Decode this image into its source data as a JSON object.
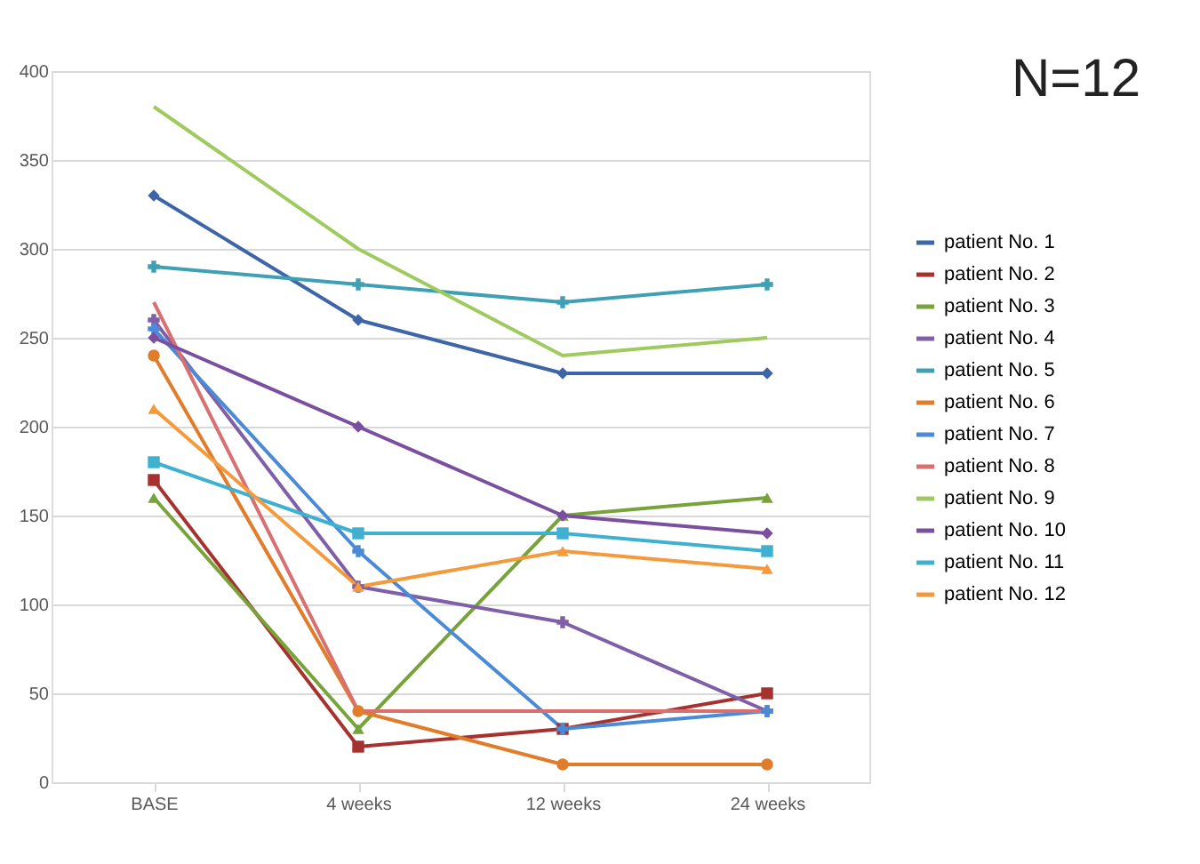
{
  "chart_data": {
    "type": "line",
    "categories": [
      "BASE",
      "4 weeks",
      "12 weeks",
      "24 weeks"
    ],
    "series": [
      {
        "name": "patient No. 1",
        "color": "#3d65a8",
        "marker": "diamond",
        "values": [
          330,
          260,
          230,
          230
        ]
      },
      {
        "name": "patient No. 2",
        "color": "#a5322f",
        "marker": "square",
        "values": [
          170,
          20,
          30,
          50
        ]
      },
      {
        "name": "patient No. 3",
        "color": "#77a33a",
        "marker": "triangle",
        "values": [
          160,
          30,
          150,
          160
        ]
      },
      {
        "name": "patient No. 4",
        "color": "#7f5fa8",
        "marker": "cross",
        "values": [
          260,
          110,
          90,
          40
        ]
      },
      {
        "name": "patient No. 5",
        "color": "#3fa0b5",
        "marker": "cross",
        "values": [
          290,
          280,
          270,
          280
        ]
      },
      {
        "name": "patient No. 6",
        "color": "#e07c2a",
        "marker": "circle",
        "values": [
          240,
          40,
          10,
          10
        ]
      },
      {
        "name": "patient No. 7",
        "color": "#4a8ad6",
        "marker": "cross",
        "values": [
          255,
          130,
          30,
          40
        ]
      },
      {
        "name": "patient No. 8",
        "color": "#d9706f",
        "marker": "none",
        "values": [
          270,
          40,
          40,
          40
        ]
      },
      {
        "name": "patient No. 9",
        "color": "#9fcb5e",
        "marker": "none",
        "values": [
          380,
          300,
          240,
          250
        ]
      },
      {
        "name": "patient No. 10",
        "color": "#7b4fa0",
        "marker": "diamond",
        "values": [
          250,
          200,
          150,
          140
        ]
      },
      {
        "name": "patient No. 11",
        "color": "#3fb0d0",
        "marker": "square",
        "values": [
          180,
          140,
          140,
          130
        ]
      },
      {
        "name": "patient No. 12",
        "color": "#f59a3c",
        "marker": "triangle",
        "values": [
          210,
          110,
          130,
          120
        ]
      }
    ],
    "ylim": [
      0,
      400
    ],
    "yticks": [
      0,
      50,
      100,
      150,
      200,
      250,
      300,
      350,
      400
    ],
    "grid": "y",
    "legend": "right",
    "line_style": "solid",
    "annotations": [
      "N=12"
    ]
  }
}
